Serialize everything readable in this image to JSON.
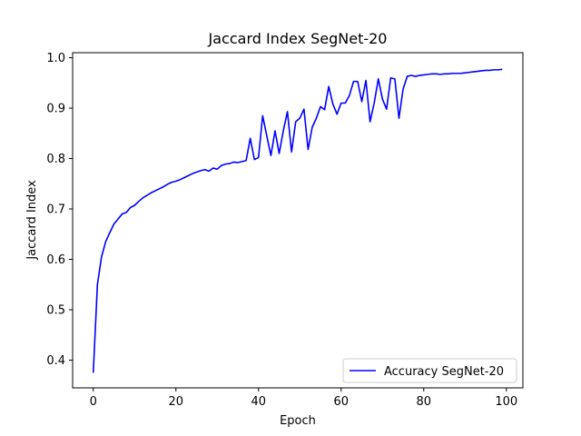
{
  "chart_data": {
    "type": "line",
    "title": "Jaccard Index SegNet-20",
    "xlabel": "Epoch",
    "ylabel": "Jaccard Index",
    "xlim": [
      -5,
      104
    ],
    "ylim": [
      0.345,
      1.01
    ],
    "xticks": [
      0,
      20,
      40,
      60,
      80,
      100
    ],
    "yticks": [
      0.4,
      0.5,
      0.6,
      0.7,
      0.8,
      0.9,
      1.0
    ],
    "xtick_labels": [
      "0",
      "20",
      "40",
      "60",
      "80",
      "100"
    ],
    "ytick_labels": [
      "0.4",
      "0.5",
      "0.6",
      "0.7",
      "0.8",
      "0.9",
      "1.0"
    ],
    "grid": false,
    "legend_position": "lower-right",
    "series": [
      {
        "name": "Accuracy SegNet-20",
        "color": "#0000ff",
        "x": [
          0,
          1,
          2,
          3,
          4,
          5,
          6,
          7,
          8,
          9,
          10,
          11,
          12,
          13,
          14,
          15,
          16,
          17,
          18,
          19,
          20,
          21,
          22,
          23,
          24,
          25,
          26,
          27,
          28,
          29,
          30,
          31,
          32,
          33,
          34,
          35,
          36,
          37,
          38,
          39,
          40,
          41,
          42,
          43,
          44,
          45,
          46,
          47,
          48,
          49,
          50,
          51,
          52,
          53,
          54,
          55,
          56,
          57,
          58,
          59,
          60,
          61,
          62,
          63,
          64,
          65,
          66,
          67,
          68,
          69,
          70,
          71,
          72,
          73,
          74,
          75,
          76,
          77,
          78,
          79,
          80,
          81,
          82,
          83,
          84,
          85,
          86,
          87,
          88,
          89,
          90,
          91,
          92,
          93,
          94,
          95,
          96,
          97,
          98,
          99
        ],
        "values": [
          0.375,
          0.55,
          0.605,
          0.635,
          0.653,
          0.67,
          0.68,
          0.69,
          0.693,
          0.703,
          0.707,
          0.715,
          0.722,
          0.727,
          0.732,
          0.736,
          0.74,
          0.744,
          0.749,
          0.753,
          0.755,
          0.758,
          0.762,
          0.766,
          0.77,
          0.773,
          0.776,
          0.778,
          0.775,
          0.781,
          0.779,
          0.786,
          0.789,
          0.79,
          0.793,
          0.792,
          0.794,
          0.796,
          0.84,
          0.798,
          0.802,
          0.885,
          0.845,
          0.806,
          0.855,
          0.81,
          0.855,
          0.893,
          0.813,
          0.873,
          0.88,
          0.898,
          0.818,
          0.862,
          0.88,
          0.903,
          0.897,
          0.943,
          0.908,
          0.888,
          0.91,
          0.91,
          0.925,
          0.953,
          0.953,
          0.913,
          0.955,
          0.873,
          0.91,
          0.958,
          0.918,
          0.898,
          0.96,
          0.958,
          0.88,
          0.938,
          0.963,
          0.965,
          0.963,
          0.965,
          0.966,
          0.967,
          0.968,
          0.968,
          0.967,
          0.968,
          0.968,
          0.969,
          0.969,
          0.969,
          0.97,
          0.971,
          0.972,
          0.973,
          0.974,
          0.975,
          0.975,
          0.976,
          0.976,
          0.977
        ]
      }
    ]
  }
}
